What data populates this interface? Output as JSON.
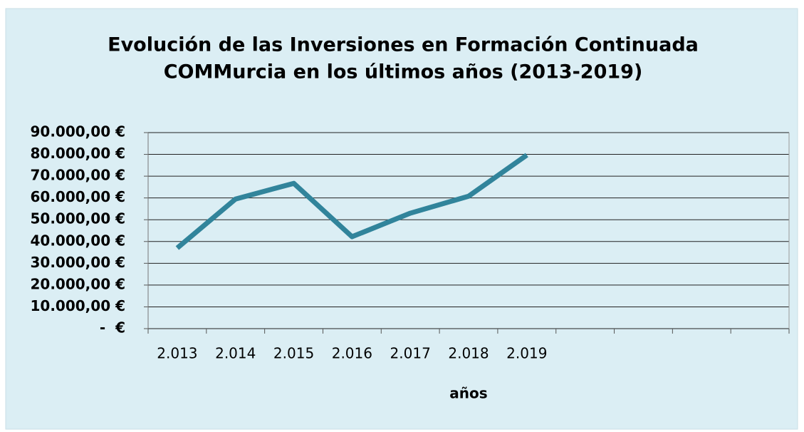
{
  "chart_data": {
    "type": "line",
    "title": [
      "Evolución de las Inversiones en Formación Continuada",
      "COMMurcia en los últimos años (2013-2019)"
    ],
    "x_label": "años",
    "categories": [
      "2.013",
      "2.014",
      "2.015",
      "2.016",
      "2.017",
      "2.018",
      "2.019",
      null,
      null,
      null,
      null
    ],
    "series": [
      {
        "name": "Inversiones",
        "color": "#31849b",
        "values": [
          37000,
          59500,
          66700,
          42200,
          53000,
          60800,
          79700,
          null,
          null,
          null,
          null
        ]
      }
    ],
    "ylim": [
      0,
      90000
    ],
    "yticks": [
      {
        "value": 0,
        "label": "-  €"
      },
      {
        "value": 10000,
        "label": "10.000,00 €"
      },
      {
        "value": 20000,
        "label": "20.000,00 €"
      },
      {
        "value": 30000,
        "label": "30.000,00 €"
      },
      {
        "value": 40000,
        "label": "40.000,00 €"
      },
      {
        "value": 50000,
        "label": "50.000,00 €"
      },
      {
        "value": 60000,
        "label": "60.000,00 €"
      },
      {
        "value": 70000,
        "label": "70.000,00 €"
      },
      {
        "value": 80000,
        "label": "80.000,00 €"
      },
      {
        "value": 90000,
        "label": "90.000,00 €"
      }
    ],
    "grid": true
  }
}
